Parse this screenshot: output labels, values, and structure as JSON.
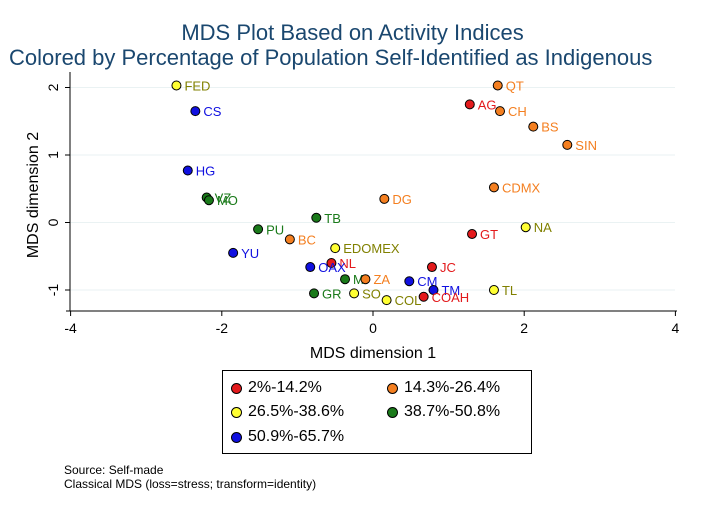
{
  "chart_data": {
    "type": "scatter",
    "title": "MDS Plot Based on Activity Indices",
    "subtitle": "Colored by Percentage of Population Self-Identified as Indigenous",
    "xlabel": "MDS dimension 1",
    "ylabel": "MDS dimension 2",
    "xlim": [
      -4,
      4
    ],
    "ylim": [
      -1.2,
      2.2
    ],
    "xticks": [
      "-4",
      "-2",
      "0",
      "2",
      "4"
    ],
    "yticks": [
      "-1",
      "0",
      "1",
      "2"
    ],
    "legend_position": "bottom",
    "groups": [
      {
        "name": "2%-14.2%",
        "color": "#e31a1c"
      },
      {
        "name": "14.3%-26.4%",
        "color": "#f47f20"
      },
      {
        "name": "26.5%-38.6%",
        "color": "#ffff33"
      },
      {
        "name": "38.7%-50.8%",
        "color": "#1a7a1a"
      },
      {
        "name": "50.9%-65.7%",
        "color": "#1010e0"
      }
    ],
    "points": [
      {
        "label": "FED",
        "x": -2.6,
        "y": 2.03,
        "group": 2
      },
      {
        "label": "CS",
        "x": -2.35,
        "y": 1.65,
        "group": 4
      },
      {
        "label": "QT",
        "x": 1.65,
        "y": 2.03,
        "group": 1
      },
      {
        "label": "AG",
        "x": 1.28,
        "y": 1.75,
        "group": 0
      },
      {
        "label": "CH",
        "x": 1.68,
        "y": 1.65,
        "group": 1
      },
      {
        "label": "BS",
        "x": 2.12,
        "y": 1.42,
        "group": 1
      },
      {
        "label": "SIN",
        "x": 2.57,
        "y": 1.15,
        "group": 1
      },
      {
        "label": "HG",
        "x": -2.45,
        "y": 0.77,
        "group": 4
      },
      {
        "label": "CDMX",
        "x": 1.6,
        "y": 0.52,
        "group": 1
      },
      {
        "label": "VZ",
        "x": -2.2,
        "y": 0.37,
        "group": 3
      },
      {
        "label": "MO",
        "x": -2.17,
        "y": 0.33,
        "group": 3
      },
      {
        "label": "DG",
        "x": 0.15,
        "y": 0.35,
        "group": 1
      },
      {
        "label": "TB",
        "x": -0.75,
        "y": 0.07,
        "group": 3
      },
      {
        "label": "PU",
        "x": -1.52,
        "y": -0.1,
        "group": 3
      },
      {
        "label": "BC",
        "x": -1.1,
        "y": -0.25,
        "group": 1
      },
      {
        "label": "NA",
        "x": 2.02,
        "y": -0.07,
        "group": 2
      },
      {
        "label": "GT",
        "x": 1.31,
        "y": -0.17,
        "group": 0
      },
      {
        "label": "EDOMEX",
        "x": -0.5,
        "y": -0.38,
        "group": 2
      },
      {
        "label": "YU",
        "x": -1.85,
        "y": -0.45,
        "group": 4
      },
      {
        "label": "NL",
        "x": -0.55,
        "y": -0.6,
        "group": 0
      },
      {
        "label": "OAX",
        "x": -0.83,
        "y": -0.66,
        "group": 4
      },
      {
        "label": "JC",
        "x": 0.78,
        "y": -0.66,
        "group": 0
      },
      {
        "label": "MI",
        "x": -0.37,
        "y": -0.84,
        "group": 3
      },
      {
        "label": "ZA",
        "x": -0.1,
        "y": -0.84,
        "group": 1
      },
      {
        "label": "CM",
        "x": 0.48,
        "y": -0.87,
        "group": 4
      },
      {
        "label": "TM",
        "x": 0.8,
        "y": -1.0,
        "group": 4
      },
      {
        "label": "TL",
        "x": 1.6,
        "y": -1.0,
        "group": 2
      },
      {
        "label": "GR",
        "x": -0.78,
        "y": -1.05,
        "group": 3
      },
      {
        "label": "SO",
        "x": -0.25,
        "y": -1.05,
        "group": 2
      },
      {
        "label": "COAH",
        "x": 0.67,
        "y": -1.1,
        "group": 0
      },
      {
        "label": "COL",
        "x": 0.18,
        "y": -1.15,
        "group": 2
      }
    ]
  },
  "notes": {
    "source": "Source: Self-made",
    "method": "Classical MDS (loss=stress; transform=identity)"
  }
}
